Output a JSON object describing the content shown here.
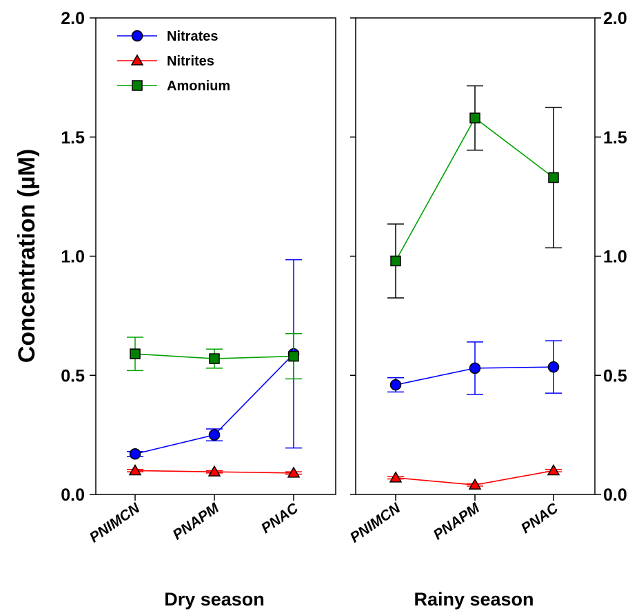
{
  "chart_data": {
    "type": "line",
    "ylabel": "Concentration (µM)",
    "ylim": [
      0,
      2
    ],
    "yticks": [
      "0.0",
      "0.5",
      "1.0",
      "1.5",
      "2.0"
    ],
    "error_bars": true,
    "legend_position": "top-left",
    "categories": [
      "PNIMCN",
      "PNAPM",
      "PNAC"
    ],
    "panels": [
      {
        "title": "Dry season",
        "series": [
          {
            "name": "Nitrates",
            "marker": "circle",
            "color": "#0000ff",
            "fill": "#0000ff",
            "values": [
              0.17,
              0.25,
              0.59
            ],
            "errors": [
              0.01,
              0.025,
              0.395
            ]
          },
          {
            "name": "Nitrites",
            "marker": "triangle",
            "color": "#ff0000",
            "fill": "#ff0000",
            "values": [
              0.1,
              0.095,
              0.09
            ],
            "errors": [
              0.005,
              0.005,
              0.005
            ]
          },
          {
            "name": "Amonium",
            "marker": "square",
            "color": "#00a000",
            "fill": "#008000",
            "values": [
              0.59,
              0.57,
              0.58
            ],
            "errors": [
              0.07,
              0.04,
              0.095
            ]
          }
        ]
      },
      {
        "title": "Rainy season",
        "series": [
          {
            "name": "Nitrates",
            "marker": "circle",
            "color": "#0000ff",
            "fill": "#0000ff",
            "values": [
              0.46,
              0.53,
              0.535
            ],
            "errors": [
              0.03,
              0.11,
              0.11
            ]
          },
          {
            "name": "Nitrites",
            "marker": "triangle",
            "color": "#ff0000",
            "fill": "#ff0000",
            "values": [
              0.07,
              0.04,
              0.1
            ],
            "errors": [
              0.005,
              0.005,
              0.005
            ]
          },
          {
            "name": "Amonium",
            "marker": "square",
            "color": "#00a000",
            "fill": "#008000",
            "values": [
              0.98,
              1.58,
              1.33
            ],
            "errors": [
              0.155,
              0.135,
              0.295
            ],
            "error_color": "#000000"
          }
        ]
      }
    ]
  }
}
